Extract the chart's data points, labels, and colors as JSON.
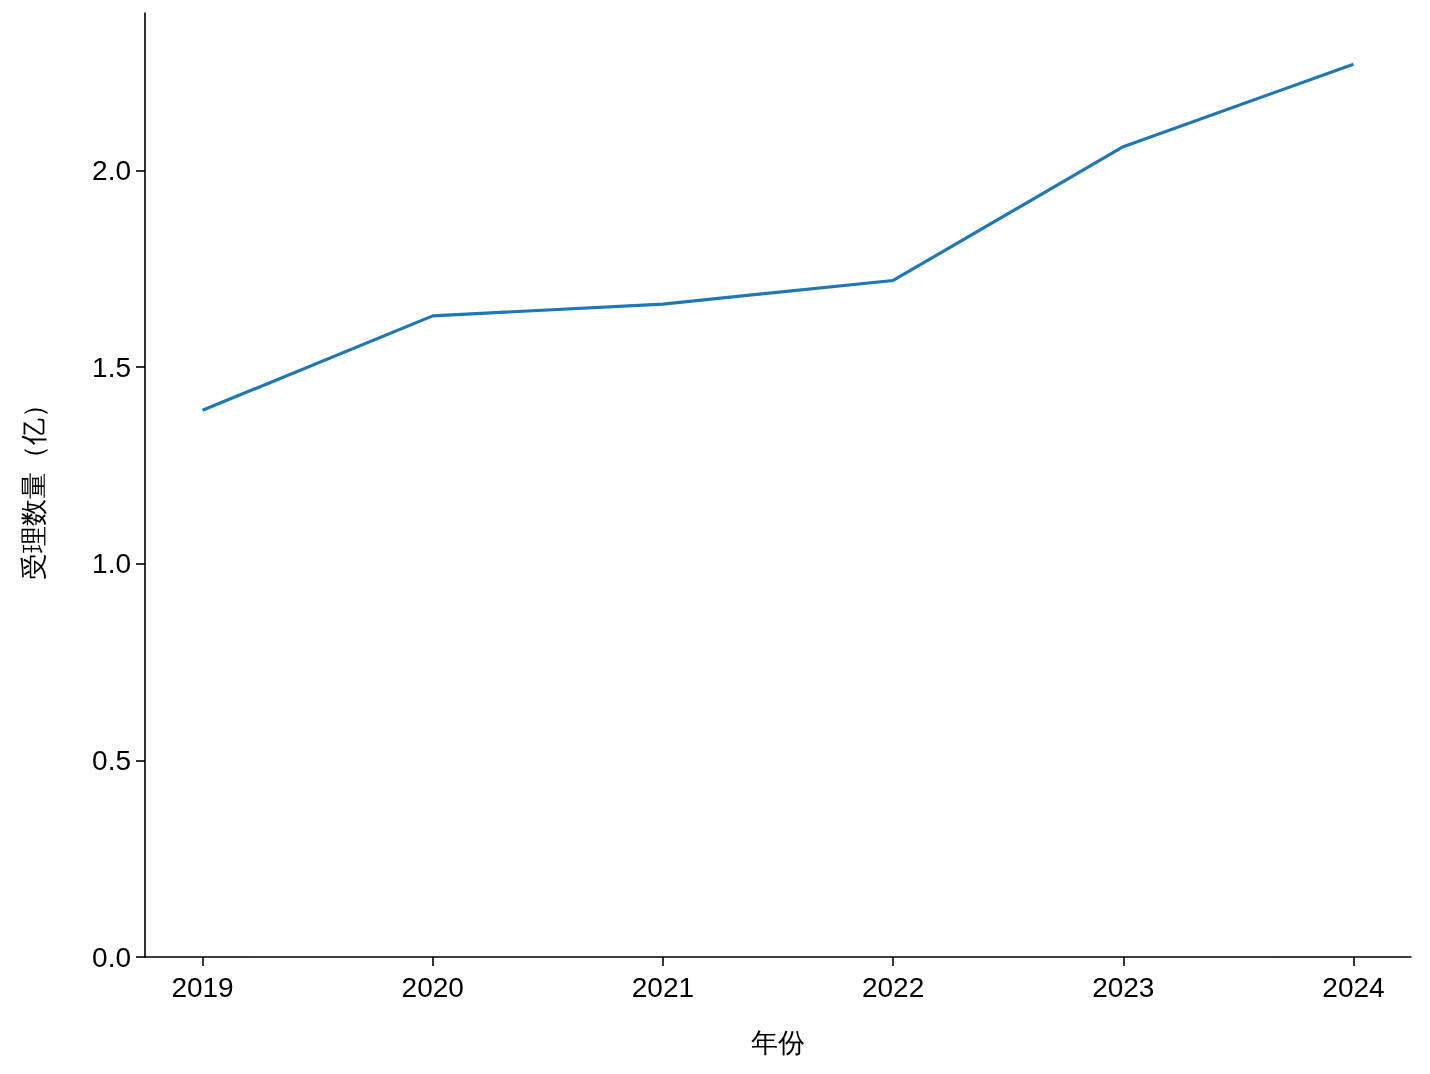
{
  "chart_data": {
    "type": "line",
    "xlabel": "年份",
    "ylabel": "受理数量（亿）",
    "x": [
      2019,
      2020,
      2021,
      2022,
      2023,
      2024
    ],
    "series": [
      {
        "color": "#1f77b4",
        "values": [
          1.39,
          1.63,
          1.66,
          1.72,
          2.06,
          2.27
        ]
      }
    ],
    "xlim": [
      2018.75,
      2024.25
    ],
    "xticks": [
      2019,
      2020,
      2021,
      2022,
      2023,
      2024
    ],
    "ylim": [
      0,
      2.4
    ],
    "yticks": [
      {
        "value": 0,
        "label": "0.0"
      },
      {
        "value": 0.5,
        "label": "0.5"
      },
      {
        "value": 1,
        "label": "1.0"
      },
      {
        "value": 1.5,
        "label": "1.5"
      },
      {
        "value": 2,
        "label": "2.0"
      }
    ],
    "marker": "none"
  }
}
